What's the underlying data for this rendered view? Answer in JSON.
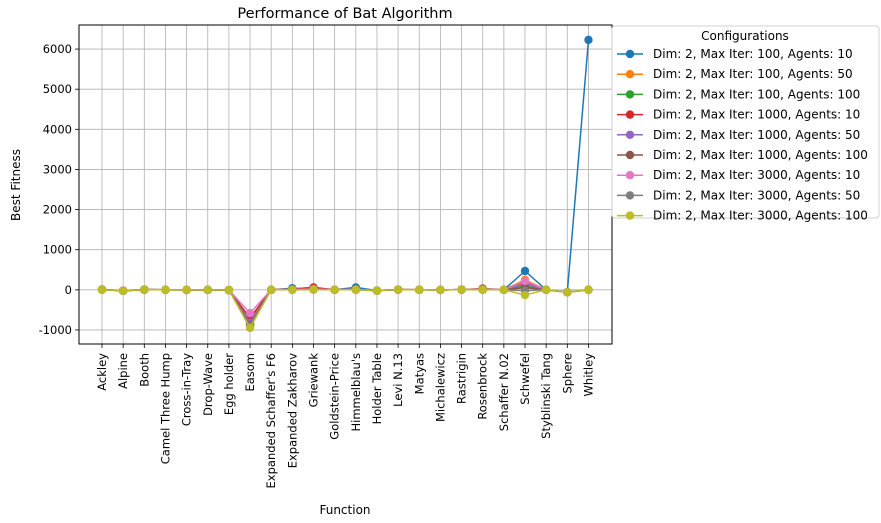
{
  "chart_data": {
    "type": "line",
    "title": "Performance of Bat Algorithm",
    "xlabel": "Function",
    "ylabel": "Best Fitness",
    "ylim": [
      -1350,
      6600
    ],
    "yticks": [
      -1000,
      0,
      1000,
      2000,
      3000,
      4000,
      5000,
      6000
    ],
    "grid": true,
    "legend": {
      "title": "Configurations",
      "placement": "outside-right"
    },
    "categories": [
      "Ackley",
      "Alpine",
      "Booth",
      "Camel Three Hump",
      "Cross-in-Tray",
      "Drop-Wave",
      "Egg holder",
      "Easom",
      "Expanded Schaffer's F6",
      "Expanded Zakharov",
      "Griewank",
      "Goldstein-Price",
      "Himmelblau's",
      "Holder Table",
      "Levi N.13",
      "Matyas",
      "Michalewicz",
      "Rastrigin",
      "Rosenbrock",
      "Schaffer N.02",
      "Schwefel",
      "Styblinski Tang",
      "Sphere",
      "Whitley"
    ],
    "series": [
      {
        "name": "Dim: 2, Max Iter: 100, Agents: 10",
        "color": "#1f77b4",
        "values": [
          10,
          -20,
          5,
          0,
          -2,
          -1,
          -10,
          -750,
          0,
          40,
          20,
          0,
          60,
          -20,
          5,
          0,
          -2,
          5,
          10,
          0,
          470,
          0,
          -60,
          6230
        ]
      },
      {
        "name": "Dim: 2, Max Iter: 100, Agents: 50",
        "color": "#ff7f0e",
        "values": [
          5,
          -25,
          5,
          0,
          -2,
          -1,
          -5,
          -800,
          0,
          10,
          30,
          0,
          10,
          -20,
          5,
          0,
          -2,
          5,
          5,
          0,
          250,
          0,
          -60,
          0
        ]
      },
      {
        "name": "Dim: 2, Max Iter: 100, Agents: 100",
        "color": "#2ca02c",
        "values": [
          5,
          -25,
          5,
          0,
          -2,
          -1,
          -5,
          -850,
          0,
          5,
          10,
          0,
          5,
          -20,
          5,
          0,
          -2,
          5,
          5,
          0,
          100,
          0,
          -60,
          0
        ]
      },
      {
        "name": "Dim: 2, Max Iter: 1000, Agents: 10",
        "color": "#d62728",
        "values": [
          5,
          -20,
          5,
          0,
          -2,
          -1,
          -5,
          -700,
          0,
          20,
          60,
          0,
          10,
          -20,
          5,
          0,
          -2,
          5,
          30,
          0,
          200,
          0,
          -60,
          0
        ]
      },
      {
        "name": "Dim: 2, Max Iter: 1000, Agents: 50",
        "color": "#9467bd",
        "values": [
          5,
          -25,
          5,
          0,
          -2,
          -1,
          -5,
          -820,
          0,
          5,
          10,
          0,
          5,
          -20,
          5,
          0,
          -2,
          5,
          5,
          0,
          150,
          0,
          -60,
          0
        ]
      },
      {
        "name": "Dim: 2, Max Iter: 1000, Agents: 100",
        "color": "#8c564b",
        "values": [
          5,
          -25,
          5,
          0,
          -2,
          -1,
          -5,
          -880,
          0,
          5,
          10,
          0,
          5,
          -20,
          5,
          0,
          -2,
          5,
          5,
          0,
          50,
          0,
          -60,
          0
        ]
      },
      {
        "name": "Dim: 2, Max Iter: 3000, Agents: 10",
        "color": "#e377c2",
        "values": [
          5,
          -20,
          5,
          0,
          -2,
          -1,
          -5,
          -580,
          0,
          10,
          20,
          0,
          10,
          -20,
          5,
          0,
          -2,
          5,
          10,
          0,
          220,
          0,
          -60,
          0
        ]
      },
      {
        "name": "Dim: 2, Max Iter: 3000, Agents: 50",
        "color": "#7f7f7f",
        "values": [
          5,
          -25,
          5,
          0,
          -2,
          -1,
          -5,
          -900,
          0,
          5,
          5,
          0,
          5,
          -20,
          5,
          0,
          -2,
          5,
          5,
          0,
          -20,
          0,
          -60,
          0
        ]
      },
      {
        "name": "Dim: 2, Max Iter: 3000, Agents: 100",
        "color": "#bcbd22",
        "values": [
          5,
          -25,
          5,
          0,
          -2,
          -1,
          -5,
          -950,
          0,
          5,
          5,
          0,
          5,
          -20,
          5,
          0,
          -2,
          5,
          5,
          0,
          -130,
          0,
          -60,
          0
        ]
      }
    ]
  }
}
